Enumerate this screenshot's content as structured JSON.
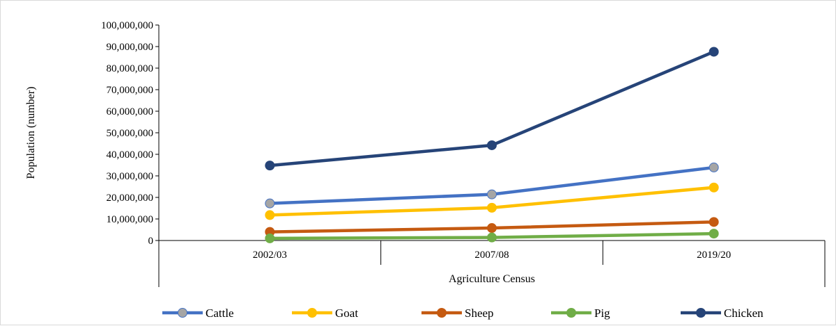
{
  "chart_data": {
    "type": "line",
    "title": "",
    "xlabel": "Agriculture Census",
    "ylabel": "Population (number)",
    "categories": [
      "2002/03",
      "2007/08",
      "2019/20"
    ],
    "ylim": [
      0,
      100000000
    ],
    "yticks": [
      0,
      10000000,
      20000000,
      30000000,
      40000000,
      50000000,
      60000000,
      70000000,
      80000000,
      90000000,
      100000000
    ],
    "ytick_labels": [
      "0",
      "10,000,000",
      "20,000,000",
      "30,000,000",
      "40,000,000",
      "50,000,000",
      "60,000,000",
      "70,000,000",
      "80,000,000",
      "90,000,000",
      "100,000,000"
    ],
    "grid": false,
    "legend_position": "bottom",
    "series": [
      {
        "name": "Cattle",
        "values": [
          17200000,
          21400000,
          33900000
        ],
        "line_color": "#4472c4",
        "marker_color": "#a5a5a5"
      },
      {
        "name": "Goat",
        "values": [
          11800000,
          15200000,
          24600000
        ],
        "line_color": "#ffc000",
        "marker_color": "#ffc000"
      },
      {
        "name": "Sheep",
        "values": [
          4000000,
          5800000,
          8600000
        ],
        "line_color": "#c55a11",
        "marker_color": "#c55a11"
      },
      {
        "name": "Pig",
        "values": [
          1000000,
          1400000,
          3200000
        ],
        "line_color": "#70ad47",
        "marker_color": "#70ad47"
      },
      {
        "name": "Chicken",
        "values": [
          34800000,
          44200000,
          87600000
        ],
        "line_color": "#264478",
        "marker_color": "#264478"
      }
    ]
  }
}
